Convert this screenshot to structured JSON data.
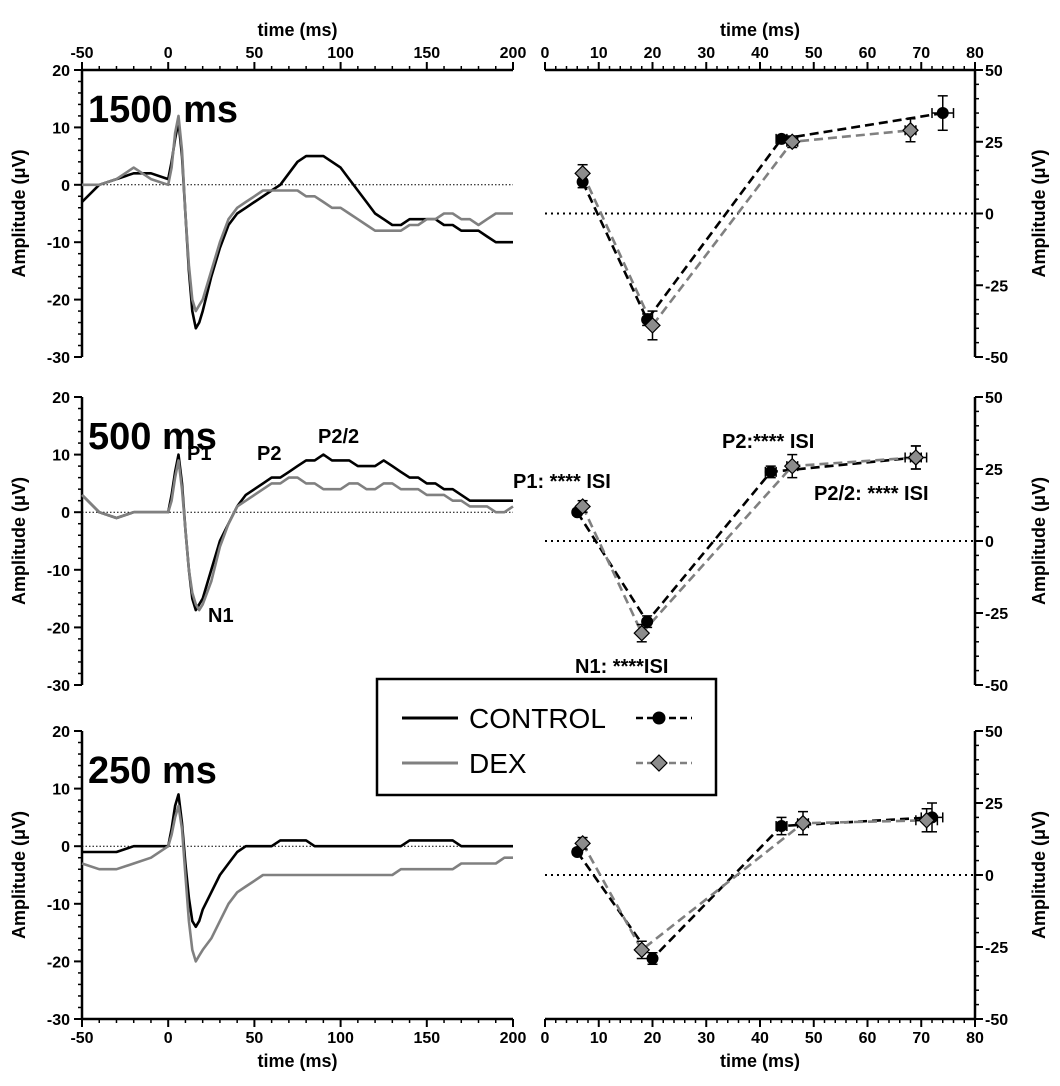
{
  "legend": {
    "entries": [
      {
        "label": "CONTROL",
        "color": "#000000"
      },
      {
        "label": "DEX",
        "color": "#808080"
      }
    ]
  },
  "chart_data": [
    {
      "type": "line",
      "title": "1500 ms",
      "xlabel": "time (ms)",
      "ylabel": "Amplitude (μV)",
      "xlim": [
        -50,
        200
      ],
      "ylim": [
        -30,
        20
      ],
      "xticks": [
        -50,
        0,
        50,
        100,
        150,
        200
      ],
      "yticks": [
        -30,
        -20,
        -10,
        0,
        10,
        20
      ],
      "x_axis_position": "top",
      "series": [
        {
          "name": "CONTROL",
          "color": "#000000",
          "x": [
            -50,
            -40,
            -30,
            -20,
            -10,
            0,
            2,
            4,
            6,
            8,
            10,
            12,
            14,
            16,
            18,
            20,
            25,
            30,
            35,
            40,
            45,
            50,
            55,
            60,
            65,
            70,
            75,
            80,
            85,
            90,
            95,
            100,
            105,
            110,
            115,
            120,
            125,
            130,
            135,
            140,
            145,
            150,
            155,
            160,
            165,
            170,
            175,
            180,
            185,
            190,
            195,
            200
          ],
          "y": [
            -3,
            0,
            1,
            2,
            2,
            1,
            4,
            8,
            11,
            5,
            -5,
            -15,
            -22,
            -25,
            -24,
            -22,
            -16,
            -11,
            -7,
            -5,
            -4,
            -3,
            -2,
            -1,
            0,
            2,
            4,
            5,
            5,
            5,
            4,
            3,
            1,
            -1,
            -3,
            -5,
            -6,
            -7,
            -7,
            -6,
            -6,
            -6,
            -6,
            -7,
            -7,
            -8,
            -8,
            -8,
            -9,
            -10,
            -10,
            -10
          ]
        },
        {
          "name": "DEX",
          "color": "#808080",
          "x": [
            -50,
            -40,
            -30,
            -20,
            -10,
            0,
            2,
            4,
            6,
            8,
            10,
            12,
            14,
            16,
            18,
            20,
            25,
            30,
            35,
            40,
            45,
            50,
            55,
            60,
            65,
            70,
            75,
            80,
            85,
            90,
            95,
            100,
            105,
            110,
            115,
            120,
            125,
            130,
            135,
            140,
            145,
            150,
            155,
            160,
            165,
            170,
            175,
            180,
            185,
            190,
            195,
            200
          ],
          "y": [
            0,
            0,
            1,
            3,
            1,
            0,
            3,
            9,
            12,
            6,
            -5,
            -14,
            -20,
            -22,
            -21,
            -20,
            -15,
            -10,
            -6,
            -4,
            -3,
            -2,
            -1,
            -1,
            -1,
            -1,
            -1,
            -2,
            -2,
            -3,
            -4,
            -4,
            -5,
            -6,
            -7,
            -8,
            -8,
            -8,
            -8,
            -7,
            -7,
            -6,
            -6,
            -5,
            -5,
            -6,
            -6,
            -7,
            -6,
            -5,
            -5,
            -5
          ]
        }
      ]
    },
    {
      "type": "line",
      "title": "500 ms",
      "xlabel": "",
      "ylabel": "Amplitude (μV)",
      "xlim": [
        -50,
        200
      ],
      "ylim": [
        -30,
        20
      ],
      "yticks": [
        -30,
        -20,
        -10,
        0,
        10,
        20
      ],
      "annotations": [
        "P1",
        "N1",
        "P2",
        "P2/2"
      ],
      "series": [
        {
          "name": "CONTROL",
          "color": "#000000",
          "x": [
            -50,
            -40,
            -30,
            -20,
            -10,
            0,
            2,
            4,
            6,
            8,
            10,
            12,
            14,
            16,
            18,
            20,
            25,
            30,
            35,
            40,
            45,
            50,
            55,
            60,
            65,
            70,
            75,
            80,
            85,
            90,
            95,
            100,
            105,
            110,
            115,
            120,
            125,
            130,
            135,
            140,
            145,
            150,
            155,
            160,
            165,
            170,
            175,
            180,
            185,
            190,
            195,
            200
          ],
          "y": [
            3,
            0,
            -1,
            0,
            0,
            0,
            3,
            7,
            10,
            5,
            -3,
            -10,
            -15,
            -17,
            -16,
            -15,
            -10,
            -5,
            -2,
            1,
            3,
            4,
            5,
            6,
            6,
            7,
            8,
            9,
            9,
            10,
            9,
            9,
            9,
            8,
            8,
            8,
            9,
            8,
            7,
            6,
            6,
            5,
            5,
            4,
            4,
            3,
            2,
            2,
            2,
            2,
            2,
            2
          ]
        },
        {
          "name": "DEX",
          "color": "#808080",
          "x": [
            -50,
            -40,
            -30,
            -20,
            -10,
            0,
            2,
            4,
            6,
            8,
            10,
            12,
            14,
            16,
            18,
            20,
            25,
            30,
            35,
            40,
            45,
            50,
            55,
            60,
            65,
            70,
            75,
            80,
            85,
            90,
            95,
            100,
            105,
            110,
            115,
            120,
            125,
            130,
            135,
            140,
            145,
            150,
            155,
            160,
            165,
            170,
            175,
            180,
            185,
            190,
            195,
            200
          ],
          "y": [
            3,
            0,
            -1,
            0,
            0,
            0,
            2,
            6,
            9,
            4,
            -3,
            -10,
            -14,
            -16,
            -17,
            -16,
            -12,
            -6,
            -2,
            1,
            2,
            3,
            4,
            5,
            5,
            6,
            6,
            5,
            5,
            4,
            4,
            4,
            5,
            5,
            4,
            4,
            5,
            5,
            4,
            4,
            4,
            3,
            3,
            3,
            2,
            2,
            1,
            1,
            1,
            0,
            0,
            1
          ]
        }
      ]
    },
    {
      "type": "line",
      "title": "250 ms",
      "xlabel": "time (ms)",
      "ylabel": "Amplitude (μV)",
      "xlim": [
        -50,
        200
      ],
      "ylim": [
        -30,
        20
      ],
      "xticks": [
        -50,
        0,
        50,
        100,
        150,
        200
      ],
      "yticks": [
        -30,
        -20,
        -10,
        0,
        10,
        20
      ],
      "x_axis_position": "bottom",
      "series": [
        {
          "name": "CONTROL",
          "color": "#000000",
          "x": [
            -50,
            -40,
            -30,
            -20,
            -10,
            0,
            2,
            4,
            6,
            8,
            10,
            12,
            14,
            16,
            18,
            20,
            25,
            30,
            35,
            40,
            45,
            50,
            55,
            60,
            65,
            70,
            75,
            80,
            85,
            90,
            95,
            100,
            105,
            110,
            115,
            120,
            125,
            130,
            135,
            140,
            145,
            150,
            155,
            160,
            165,
            170,
            175,
            180,
            185,
            190,
            195,
            200
          ],
          "y": [
            -1,
            -1,
            -1,
            0,
            0,
            0,
            3,
            7,
            9,
            4,
            -3,
            -9,
            -13,
            -14,
            -13,
            -11,
            -8,
            -5,
            -3,
            -1,
            0,
            0,
            0,
            0,
            1,
            1,
            1,
            1,
            0,
            0,
            0,
            0,
            0,
            0,
            0,
            0,
            0,
            0,
            0,
            1,
            1,
            1,
            1,
            1,
            1,
            0,
            0,
            0,
            0,
            0,
            0,
            0
          ]
        },
        {
          "name": "DEX",
          "color": "#808080",
          "x": [
            -50,
            -40,
            -30,
            -20,
            -10,
            0,
            2,
            4,
            6,
            8,
            10,
            12,
            14,
            16,
            18,
            20,
            25,
            30,
            35,
            40,
            45,
            50,
            55,
            60,
            65,
            70,
            75,
            80,
            85,
            90,
            95,
            100,
            105,
            110,
            115,
            120,
            125,
            130,
            135,
            140,
            145,
            150,
            155,
            160,
            165,
            170,
            175,
            180,
            185,
            190,
            195,
            200
          ],
          "y": [
            -3,
            -4,
            -4,
            -3,
            -2,
            0,
            2,
            5,
            7,
            3,
            -5,
            -13,
            -18,
            -20,
            -19,
            -18,
            -16,
            -13,
            -10,
            -8,
            -7,
            -6,
            -5,
            -5,
            -5,
            -5,
            -5,
            -5,
            -5,
            -5,
            -5,
            -5,
            -5,
            -5,
            -5,
            -5,
            -5,
            -5,
            -4,
            -4,
            -4,
            -4,
            -4,
            -4,
            -4,
            -3,
            -3,
            -3,
            -3,
            -3,
            -2,
            -2
          ]
        }
      ]
    },
    {
      "type": "scatter",
      "title": "",
      "xlabel": "time (ms)",
      "ylabel": "Amplitude (μV)",
      "xlim": [
        0,
        80
      ],
      "ylim": [
        -50,
        50
      ],
      "xticks": [
        0,
        10,
        20,
        30,
        40,
        50,
        60,
        70,
        80
      ],
      "yticks": [
        -50,
        -25,
        0,
        25,
        50
      ],
      "x_axis_position": "top",
      "y_axis_position": "right",
      "series": [
        {
          "name": "CONTROL",
          "color": "#000000",
          "marker": "circle",
          "x": [
            7,
            19,
            44,
            74
          ],
          "y": [
            11,
            -37,
            26,
            35
          ],
          "x_err": [
            0,
            0,
            1,
            2
          ],
          "y_err": [
            2,
            2,
            1,
            6
          ]
        },
        {
          "name": "DEX",
          "color": "#808080",
          "marker": "diamond",
          "x": [
            7,
            20,
            46,
            68
          ],
          "y": [
            14,
            -39,
            25,
            29
          ],
          "x_err": [
            0,
            0,
            1,
            1
          ],
          "y_err": [
            3,
            5,
            2,
            4
          ]
        }
      ]
    },
    {
      "type": "scatter",
      "title": "",
      "xlabel": "",
      "ylabel": "Amplitude (μV)",
      "xlim": [
        0,
        80
      ],
      "ylim": [
        -50,
        50
      ],
      "yticks": [
        -50,
        -25,
        0,
        25,
        50
      ],
      "y_axis_position": "right",
      "annotations": [
        "P1: **** ISI",
        "N1: ****ISI",
        "P2:**** ISI",
        "P2/2: **** ISI"
      ],
      "series": [
        {
          "name": "CONTROL",
          "color": "#000000",
          "marker": "circle",
          "x": [
            6,
            19,
            42,
            69
          ],
          "y": [
            10,
            -28,
            24,
            29
          ],
          "x_err": [
            0,
            0,
            1,
            2
          ],
          "y_err": [
            1,
            2,
            2,
            4
          ]
        },
        {
          "name": "DEX",
          "color": "#808080",
          "marker": "diamond",
          "x": [
            7,
            18,
            46,
            69
          ],
          "y": [
            12,
            -32,
            26,
            29
          ],
          "x_err": [
            0,
            0,
            1,
            1
          ],
          "y_err": [
            2,
            3,
            4,
            4
          ]
        }
      ]
    },
    {
      "type": "scatter",
      "title": "",
      "xlabel": "time (ms)",
      "ylabel": "Amplitude (μV)",
      "xlim": [
        0,
        80
      ],
      "ylim": [
        -50,
        50
      ],
      "xticks": [
        0,
        10,
        20,
        30,
        40,
        50,
        60,
        70,
        80
      ],
      "yticks": [
        -50,
        -25,
        0,
        25,
        50
      ],
      "x_axis_position": "bottom",
      "y_axis_position": "right",
      "series": [
        {
          "name": "CONTROL",
          "color": "#000000",
          "marker": "circle",
          "x": [
            6,
            20,
            44,
            72
          ],
          "y": [
            8,
            -29,
            17,
            20
          ],
          "x_err": [
            0,
            0,
            1,
            2
          ],
          "y_err": [
            1,
            2,
            3,
            5
          ]
        },
        {
          "name": "DEX",
          "color": "#808080",
          "marker": "diamond",
          "x": [
            7,
            18,
            48,
            71
          ],
          "y": [
            11,
            -26,
            18,
            19
          ],
          "x_err": [
            0,
            0,
            1,
            2
          ],
          "y_err": [
            2,
            3,
            4,
            4
          ]
        }
      ]
    }
  ]
}
